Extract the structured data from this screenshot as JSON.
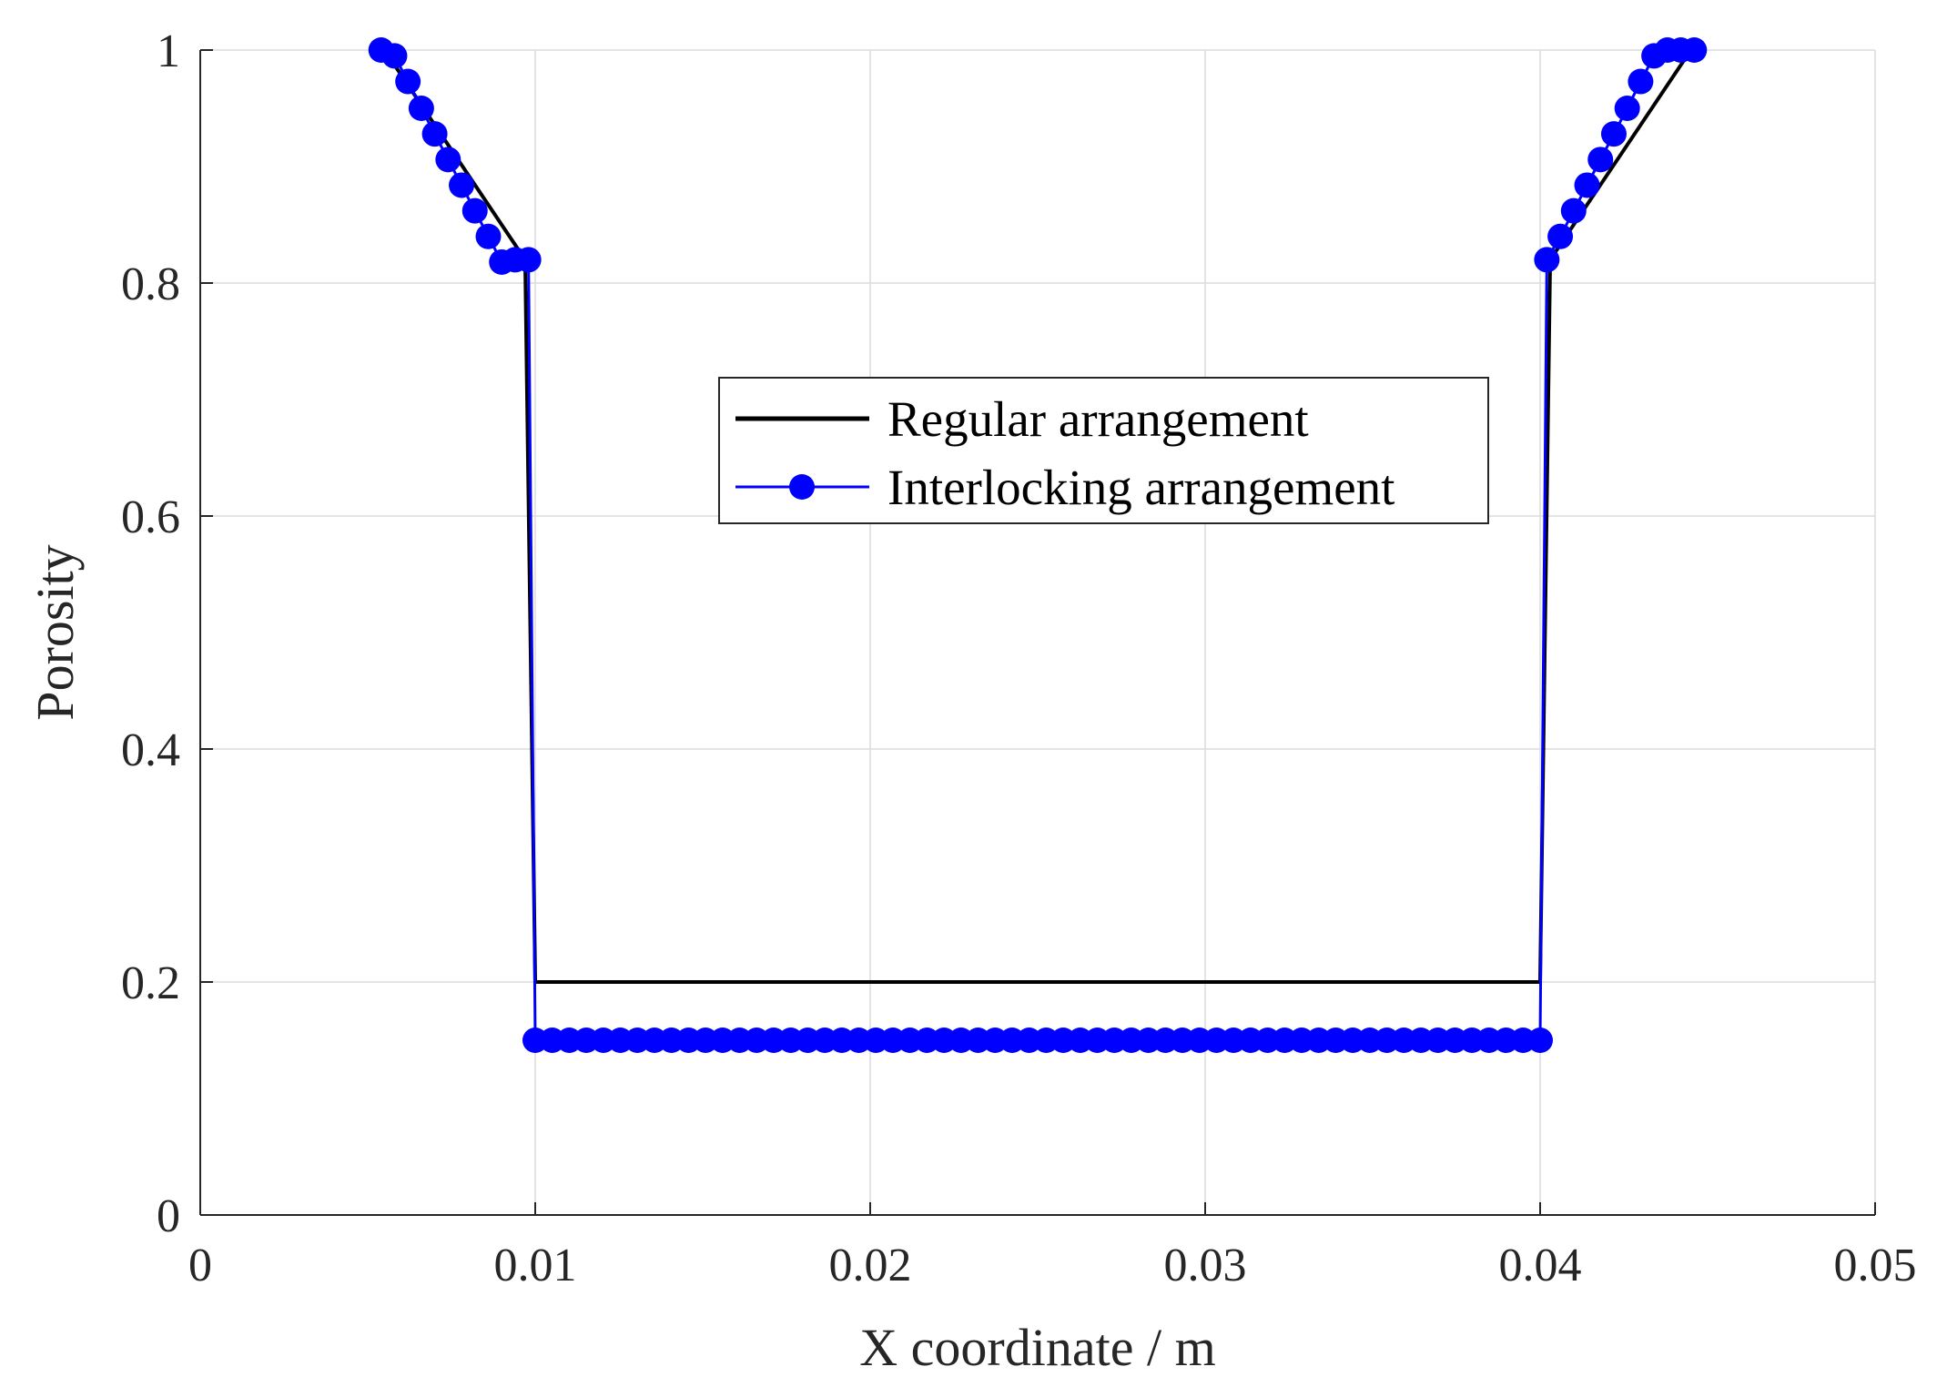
{
  "chart_data": {
    "type": "line",
    "title": "",
    "xlabel": "X coordinate / m",
    "ylabel": "Porosity",
    "xlim": [
      0,
      0.05
    ],
    "ylim": [
      0,
      1
    ],
    "xticks": [
      0,
      0.01,
      0.02,
      0.03,
      0.04,
      0.05
    ],
    "xtick_labels": [
      "0",
      "0.01",
      "0.02",
      "0.03",
      "0.04",
      "0.05"
    ],
    "yticks": [
      0,
      0.2,
      0.4,
      0.6,
      0.8,
      1
    ],
    "ytick_labels": [
      "0",
      "0.2",
      "0.4",
      "0.6",
      "0.8",
      "1"
    ],
    "grid": true,
    "legend_position": "center-top",
    "series": [
      {
        "name": "Regular arrangement",
        "color": "#000000",
        "marker": "none",
        "x": [
          0.0055,
          0.0097,
          0.01,
          0.04,
          0.0403,
          0.0445
        ],
        "y": [
          1.0,
          0.82,
          0.2,
          0.2,
          0.82,
          1.0
        ]
      },
      {
        "name": "Interlocking arrangement",
        "color": "#0000ff",
        "marker": "circle",
        "x": [
          0.0054,
          0.0058,
          0.0062,
          0.0066,
          0.007,
          0.0074,
          0.0078,
          0.0082,
          0.0086,
          0.009,
          0.0094,
          0.0098,
          0.01,
          0.04,
          0.0402,
          0.0406,
          0.041,
          0.0414,
          0.0418,
          0.0422,
          0.0426,
          0.043,
          0.0434,
          0.0438,
          0.0442,
          0.0446
        ],
        "y": [
          1.0,
          0.995,
          0.973,
          0.95,
          0.928,
          0.906,
          0.884,
          0.862,
          0.84,
          0.818,
          0.82,
          0.82,
          0.15,
          0.15,
          0.82,
          0.84,
          0.862,
          0.884,
          0.906,
          0.928,
          0.95,
          0.973,
          0.995,
          1.0,
          1.0,
          1.0
        ],
        "flat_segment": {
          "x_start": 0.01,
          "x_end": 0.04,
          "y": 0.15,
          "marker_count": 60
        }
      }
    ]
  }
}
